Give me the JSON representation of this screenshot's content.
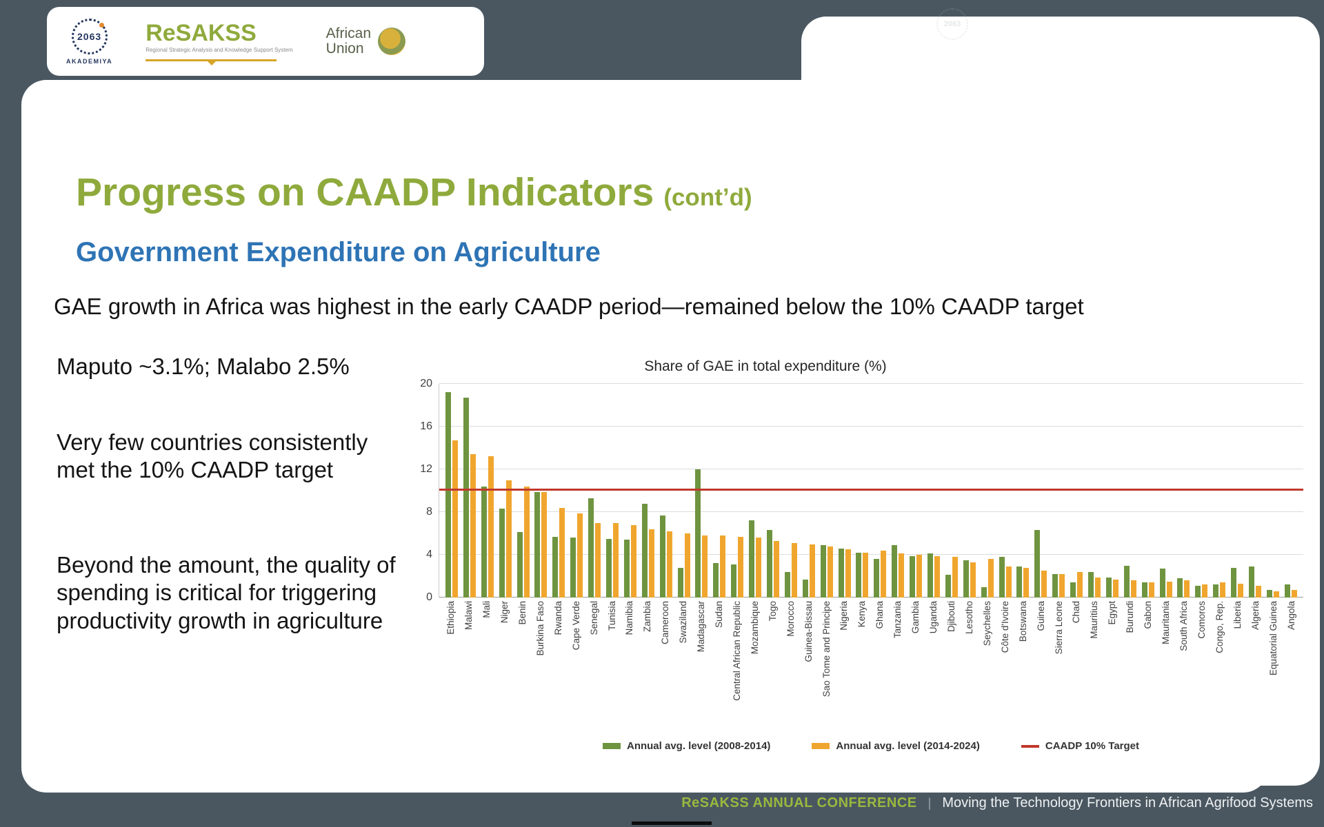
{
  "logos": {
    "akademiya": {
      "numerals": "2063",
      "name": "AKADEMIYA"
    },
    "resakss": {
      "title": "ReSAKSS",
      "subtitle": "Regional Strategic Analysis and Knowledge Support System"
    },
    "african_union": {
      "line1": "African",
      "line2": "Union"
    }
  },
  "slide": {
    "title": "Progress on CAADP Indicators",
    "title_suffix": "(cont’d)",
    "subtitle": "Government Expenditure on Agriculture",
    "lead": "GAE growth in Africa was highest in the early CAADP period—remained below the 10% CAADP target",
    "bullets": [
      "Maputo ~3.1%; Malabo 2.5%",
      "Very few countries consistently met the 10% CAADP target",
      "Beyond the amount, the quality of spending is critical for triggering productivity growth in agriculture"
    ]
  },
  "chart_data": {
    "type": "bar",
    "title": "Share of GAE in total expenditure (%)",
    "xlabel": "",
    "ylabel": "",
    "ylim": [
      0,
      20
    ],
    "yticks": [
      0,
      4,
      8,
      12,
      16,
      20
    ],
    "grid": true,
    "legend_position": "bottom",
    "categories": [
      "Ethiopia",
      "Malawi",
      "Mali",
      "Niger",
      "Benin",
      "Burkina Faso",
      "Rwanda",
      "Cape Verde",
      "Senegal",
      "Tunisia",
      "Namibia",
      "Zambia",
      "Cameroon",
      "Swaziland",
      "Madagascar",
      "Sudan",
      "Central African Republic",
      "Mozambique",
      "Togo",
      "Morocco",
      "Guinea-Bissau",
      "Sao Tome and Principe",
      "Nigeria",
      "Kenya",
      "Ghana",
      "Tanzania",
      "Gambia",
      "Uganda",
      "Djibouti",
      "Lesotho",
      "Seychelles",
      "Côte d'Ivoire",
      "Botswana",
      "Guinea",
      "Sierra Leone",
      "Chad",
      "Mauritius",
      "Egypt",
      "Burundi",
      "Gabon",
      "Mauritania",
      "South Africa",
      "Comoros",
      "Congo, Rep.",
      "Liberia",
      "Algeria",
      "Equatorial Guinea",
      "Angola"
    ],
    "series": [
      {
        "name": "Annual avg. level (2008-2014)",
        "color": "#6f9440",
        "values": [
          19.2,
          18.7,
          10.4,
          8.3,
          6.1,
          9.9,
          5.7,
          5.6,
          9.3,
          5.5,
          5.4,
          8.8,
          7.7,
          2.8,
          12.0,
          3.2,
          3.1,
          7.2,
          6.3,
          2.4,
          1.7,
          4.9,
          4.6,
          4.2,
          3.6,
          4.9,
          3.9,
          4.1,
          2.1,
          3.5,
          1.0,
          3.8,
          2.9,
          6.3,
          2.2,
          1.4,
          2.4,
          1.9,
          3.0,
          1.4,
          2.7,
          1.8,
          1.1,
          1.2,
          2.8,
          2.9,
          0.7,
          1.2
        ]
      },
      {
        "name": "Annual avg. level (2014-2024)",
        "color": "#f0a62e",
        "values": [
          14.7,
          13.4,
          13.2,
          11.0,
          10.4,
          9.9,
          8.4,
          7.9,
          7.0,
          7.0,
          6.8,
          6.4,
          6.2,
          6.0,
          5.8,
          5.8,
          5.7,
          5.6,
          5.3,
          5.1,
          5.0,
          4.8,
          4.5,
          4.2,
          4.4,
          4.1,
          4.0,
          3.9,
          3.8,
          3.3,
          3.6,
          2.9,
          2.8,
          2.5,
          2.2,
          2.4,
          1.9,
          1.7,
          1.6,
          1.4,
          1.5,
          1.6,
          1.2,
          1.4,
          1.3,
          1.1,
          0.6,
          0.7
        ]
      }
    ],
    "target_line": {
      "label": "CAADP 10% Target",
      "value": 10,
      "color": "#c0392b"
    }
  },
  "footer": {
    "conference": "ReSAKSS ANNUAL CONFERENCE",
    "separator": "|",
    "tagline": "Moving the Technology Frontiers in African Agrifood Systems"
  }
}
